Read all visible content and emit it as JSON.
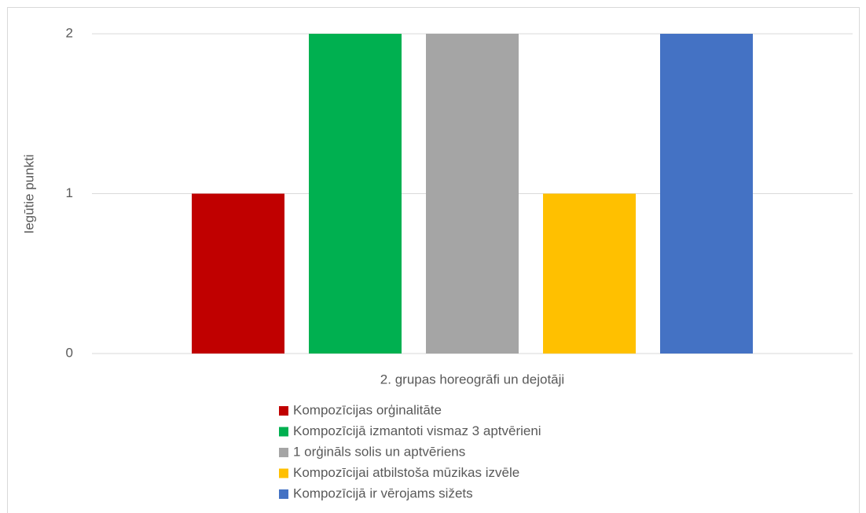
{
  "chart_data": {
    "type": "bar",
    "ylabel": "Iegūtie punkti",
    "categories": [
      "2. grupas horeogrāfi un dejotāji"
    ],
    "series": [
      {
        "name": "Kompozīcijas orģinalitāte",
        "color": "#c00000",
        "values": [
          1
        ]
      },
      {
        "name": "Kompozīcijā izmantoti vismaz 3 aptvērieni",
        "color": "#00b050",
        "values": [
          2
        ]
      },
      {
        "name": "1 orģināls solis un aptvēriens",
        "color": "#a5a5a5",
        "values": [
          2
        ]
      },
      {
        "name": "Kompozīcijai atbilstoša mūzikas izvēle",
        "color": "#ffc000",
        "values": [
          1
        ]
      },
      {
        "name": "Kompozīcijā ir vērojams sižets",
        "color": "#4472c4",
        "values": [
          2
        ]
      }
    ],
    "ylim": [
      0,
      2
    ],
    "yticks": [
      0,
      1,
      2
    ],
    "grid": true,
    "legend": "bottom"
  }
}
